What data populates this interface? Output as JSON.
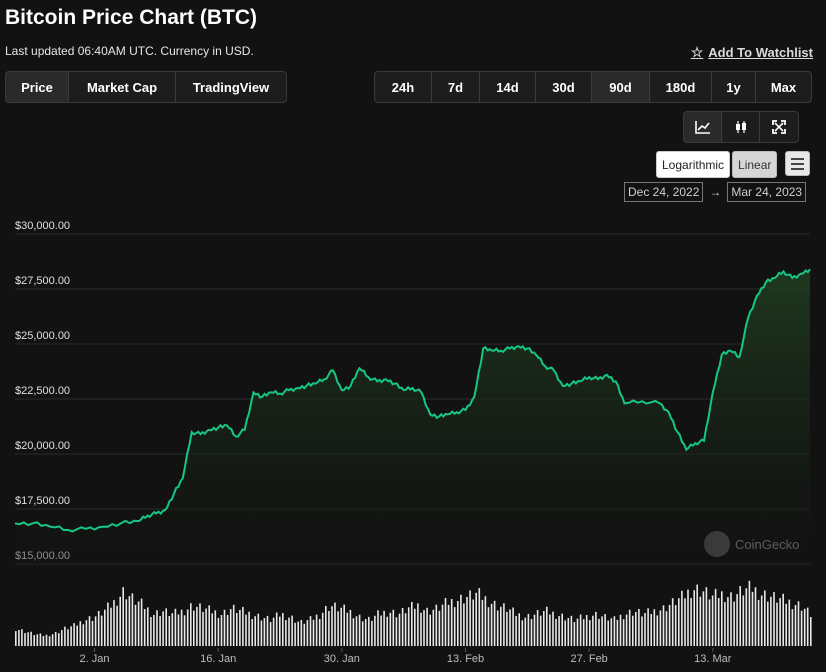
{
  "header": {
    "title": "Bitcoin Price Chart (BTC)",
    "updated": "Last updated 06:40AM UTC. Currency in USD.",
    "watchlist": "Add To Watchlist"
  },
  "view_tabs": [
    "Price",
    "Market Cap",
    "TradingView"
  ],
  "range_tabs": [
    "24h",
    "7d",
    "14d",
    "30d",
    "90d",
    "180d",
    "1y",
    "Max"
  ],
  "active_range": "90d",
  "chart_types": [
    "line-chart-icon",
    "candlestick-icon",
    "fullscreen-icon"
  ],
  "scale": {
    "log": "Logarithmic",
    "linear": "Linear",
    "active": "Linear"
  },
  "date_range": {
    "from": "Dec 24, 2022",
    "arrow": "→",
    "to": "Mar 24, 2023"
  },
  "watermark": "CoinGecko",
  "colors": {
    "line": "#16c784",
    "fill_top": "#1f3a1f",
    "bg": "#121212",
    "grid": "#2b2b2b"
  },
  "chart_data": {
    "type": "area",
    "title": "Bitcoin Price Chart (BTC)",
    "ylim": [
      15000,
      30000
    ],
    "yticks": [
      15000,
      17500,
      20000,
      22500,
      25000,
      27500,
      30000
    ],
    "ytick_labels": [
      "$15,000.00",
      "$17,500.00",
      "$20,000.00",
      "$22,500.00",
      "$25,000.00",
      "$27,500.00",
      "$30,000.00"
    ],
    "xtick_labels": [
      "2. Jan",
      "16. Jan",
      "30. Jan",
      "13. Feb",
      "27. Feb",
      "13. Mar"
    ],
    "xtick_dates": [
      "2023-01-02",
      "2023-01-16",
      "2023-01-30",
      "2023-02-13",
      "2023-02-27",
      "2023-03-13"
    ],
    "series": [
      {
        "x": [
          "2022-12-24",
          "2022-12-26",
          "2022-12-28",
          "2022-12-30",
          "2023-01-01",
          "2023-01-03",
          "2023-01-05",
          "2023-01-07",
          "2023-01-08",
          "2023-01-09",
          "2023-01-10",
          "2023-01-11",
          "2023-01-12",
          "2023-01-13",
          "2023-01-14",
          "2023-01-15",
          "2023-01-16",
          "2023-01-17",
          "2023-01-18",
          "2023-01-19",
          "2023-01-20",
          "2023-01-21",
          "2023-01-22",
          "2023-01-23",
          "2023-01-24",
          "2023-01-25",
          "2023-01-26",
          "2023-01-27",
          "2023-01-28",
          "2023-01-29",
          "2023-01-30",
          "2023-01-31",
          "2023-02-01",
          "2023-02-02",
          "2023-02-03",
          "2023-02-04",
          "2023-02-05",
          "2023-02-06",
          "2023-02-07",
          "2023-02-08",
          "2023-02-09",
          "2023-02-10",
          "2023-02-11",
          "2023-02-12",
          "2023-02-13",
          "2023-02-14",
          "2023-02-15",
          "2023-02-16",
          "2023-02-17",
          "2023-02-18",
          "2023-02-19",
          "2023-02-20",
          "2023-02-21",
          "2023-02-22",
          "2023-02-23",
          "2023-02-24",
          "2023-02-25",
          "2023-02-26",
          "2023-02-27",
          "2023-02-28",
          "2023-03-01",
          "2023-03-02",
          "2023-03-03",
          "2023-03-05",
          "2023-03-07",
          "2023-03-08",
          "2023-03-09",
          "2023-03-10",
          "2023-03-11",
          "2023-03-12",
          "2023-03-13",
          "2023-03-14",
          "2023-03-15",
          "2023-03-16",
          "2023-03-17",
          "2023-03-18",
          "2023-03-19",
          "2023-03-20",
          "2023-03-21",
          "2023-03-22",
          "2023-03-23",
          "2023-03-24"
        ],
        "values": [
          16850,
          16850,
          16700,
          16550,
          16600,
          16700,
          16850,
          16950,
          17200,
          17300,
          17450,
          18200,
          18900,
          21000,
          20900,
          21100,
          21200,
          21300,
          20800,
          21100,
          22800,
          22600,
          22800,
          22750,
          22900,
          23000,
          23100,
          23200,
          23400,
          23800,
          22900,
          23100,
          23900,
          23500,
          23300,
          23400,
          23200,
          22900,
          23000,
          22800,
          21800,
          21700,
          21800,
          21900,
          22000,
          22600,
          24800,
          24700,
          24700,
          24800,
          24900,
          24800,
          24500,
          24000,
          23800,
          23100,
          23200,
          23300,
          23500,
          23400,
          23600,
          23300,
          22300,
          22400,
          22300,
          21900,
          21000,
          20200,
          20500,
          20600,
          22800,
          24500,
          24700,
          24400,
          26200,
          27200,
          27800,
          28000,
          28300,
          28000,
          28200,
          28400
        ]
      }
    ],
    "volume": [
      0.3,
      0.25,
      0.2,
      0.18,
      0.22,
      0.3,
      0.35,
      0.45,
      0.5,
      0.6,
      0.75,
      0.95,
      0.8,
      0.7,
      0.55,
      0.6,
      0.55,
      0.6,
      0.7,
      0.65,
      0.6,
      0.55,
      0.65,
      0.6,
      0.55,
      0.5,
      0.45,
      0.55,
      0.5,
      0.4,
      0.45,
      0.55,
      0.7,
      0.65,
      0.6,
      0.5,
      0.45,
      0.55,
      0.6,
      0.55,
      0.65,
      0.7,
      0.6,
      0.65,
      0.75,
      0.8,
      0.85,
      0.9,
      0.8,
      0.7,
      0.65,
      0.55,
      0.5,
      0.55,
      0.6,
      0.55,
      0.5,
      0.45,
      0.5,
      0.55,
      0.5,
      0.45,
      0.55,
      0.6,
      0.55,
      0.6,
      0.65,
      0.75,
      0.85,
      1.0,
      0.95,
      0.85,
      0.9,
      0.85,
      0.95,
      1.0,
      0.9,
      0.85,
      0.8,
      0.75,
      0.7,
      0.55
    ]
  }
}
